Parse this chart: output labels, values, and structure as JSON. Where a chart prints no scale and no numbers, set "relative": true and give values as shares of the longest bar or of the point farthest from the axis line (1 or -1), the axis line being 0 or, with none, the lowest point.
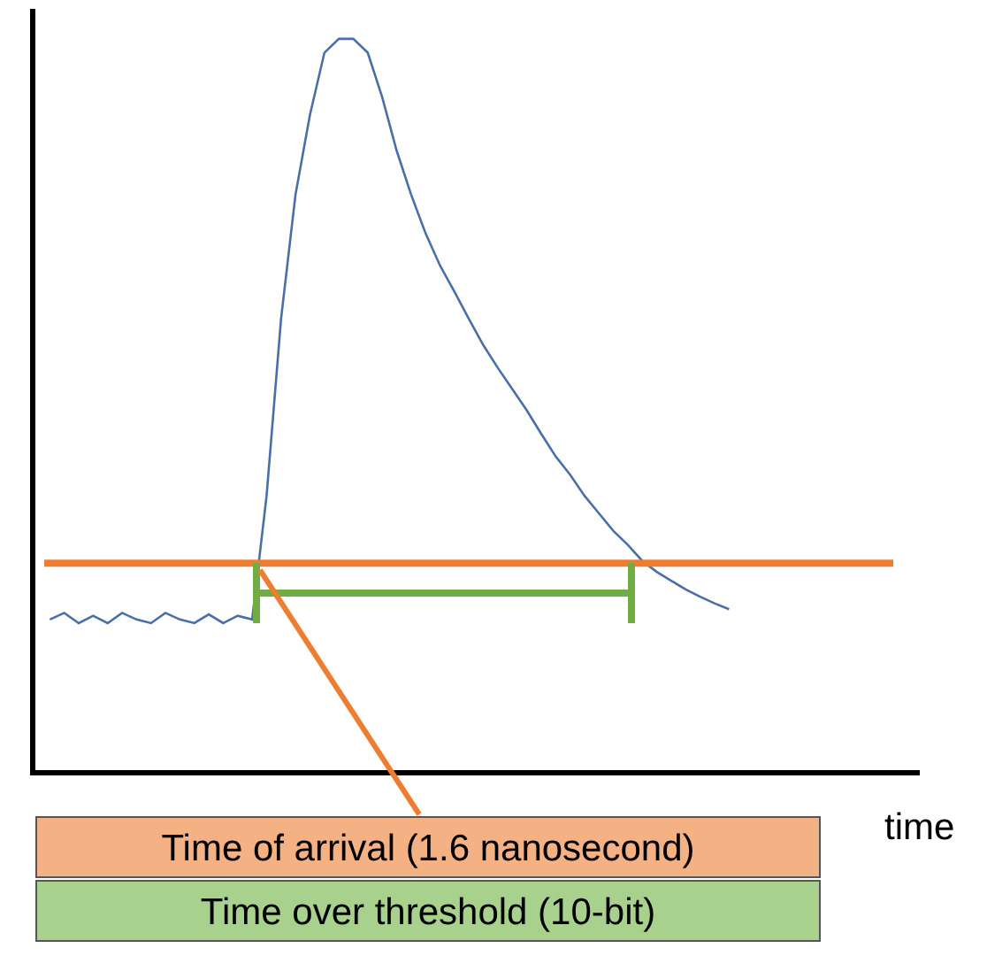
{
  "chart_data": {
    "type": "line",
    "relative": true,
    "xlabel": "time",
    "categories": [
      null,
      null,
      null,
      null,
      null,
      null,
      null,
      null,
      null,
      null,
      null,
      null,
      null,
      null,
      null,
      null,
      null,
      null,
      null,
      null,
      null,
      null,
      null,
      null,
      null,
      null,
      null,
      null,
      null,
      null,
      null,
      null,
      null,
      null,
      null,
      null,
      null,
      null,
      null,
      null,
      null,
      null,
      null,
      null,
      null,
      null,
      null,
      null
    ],
    "series": [
      {
        "color": "#4a6fa8",
        "values": [
          0.206,
          0.215,
          0.201,
          0.211,
          0.201,
          0.215,
          0.206,
          0.201,
          0.215,
          0.206,
          0.201,
          0.213,
          0.201,
          0.211,
          0.206,
          0.375,
          0.617,
          0.787,
          0.896,
          0.981,
          1,
          1,
          0.981,
          0.92,
          0.847,
          0.787,
          0.734,
          0.69,
          0.654,
          0.617,
          0.581,
          0.55,
          0.521,
          0.492,
          0.46,
          0.429,
          0.404,
          0.375,
          0.351,
          0.327,
          0.308,
          0.286,
          0.271,
          0.259,
          0.247,
          0.237,
          0.228,
          0.22
        ]
      }
    ],
    "ref_lines": [
      {
        "axis": "y",
        "value": 0.283,
        "color": "#ed7d31"
      }
    ],
    "annotations": [
      "Time of arrival (1.6 nanosecond)",
      "Time over threshold (10-bit)"
    ],
    "grid": false,
    "marker": "none",
    "line_style": "solid"
  }
}
